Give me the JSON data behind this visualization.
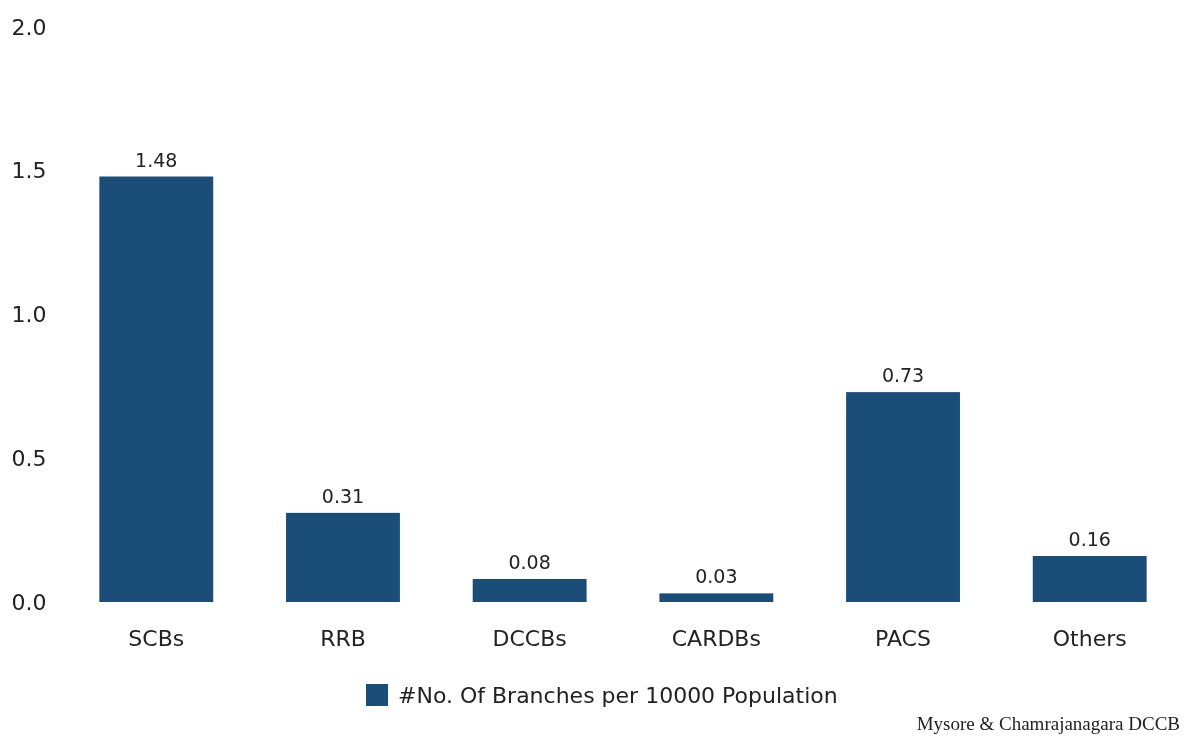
{
  "chart_data": {
    "type": "bar",
    "categories": [
      "SCBs",
      "RRB",
      "DCCBs",
      "CARDBs",
      "PACS",
      "Others"
    ],
    "series": [
      {
        "name": "#No. Of Branches per 10000 Population",
        "color": "#1a4e78",
        "values": [
          1.48,
          0.31,
          0.08,
          0.03,
          0.73,
          0.16
        ]
      }
    ],
    "ylim": [
      0,
      2
    ],
    "yticks": [
      {
        "value": 0,
        "label": "0.0"
      },
      {
        "value": 0.5,
        "label": "0.5"
      },
      {
        "value": 1,
        "label": "1.0"
      },
      {
        "value": 1.5,
        "label": "1.5"
      },
      {
        "value": 2,
        "label": "2.0"
      }
    ],
    "data_labels": true,
    "grid": false,
    "legend": "bottom",
    "annotations": [
      "Mysore & Chamrajanagara DCCB"
    ]
  }
}
